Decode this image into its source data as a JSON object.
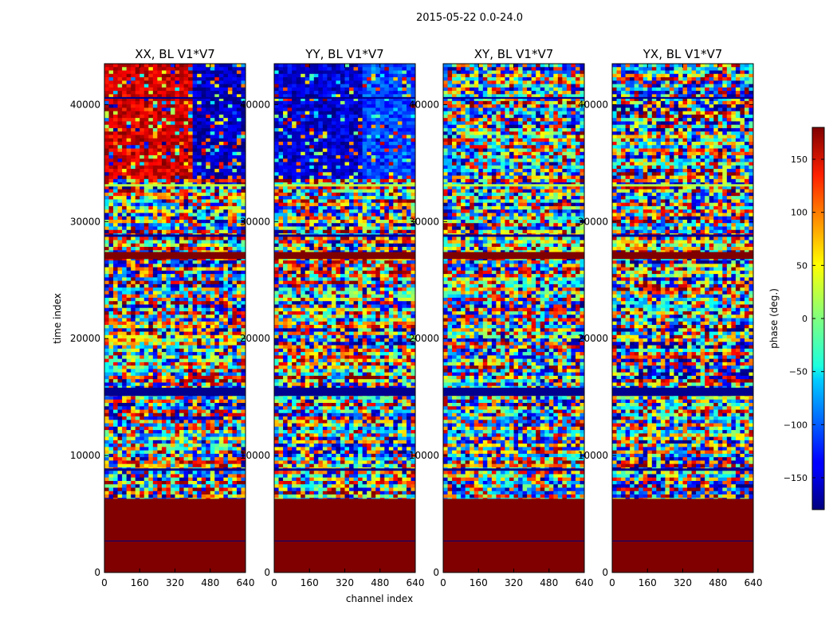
{
  "figure": {
    "suptitle": "2015-05-22 0.0-24.0",
    "xlabel": "channel index",
    "ylabel": "time index",
    "colorbar_label": "phase (deg.)"
  },
  "chart_data": {
    "type": "heatmap",
    "x_range": [
      0,
      640
    ],
    "y_range": [
      0,
      43500
    ],
    "x_ticks": [
      0,
      160,
      320,
      480,
      640
    ],
    "y_ticks": [
      0,
      10000,
      20000,
      30000,
      40000
    ],
    "color_range": [
      -180,
      180
    ],
    "colormap": "jet",
    "colorbar_ticks": [
      150,
      100,
      50,
      0,
      -50,
      -100,
      -150
    ],
    "colorbar_tick_labels": [
      "150",
      "100",
      "50",
      "0",
      "−50",
      "−100",
      "−150"
    ],
    "panels": [
      {
        "id": "xx",
        "title": "XX, BL V1*V7",
        "upper_left_phase": 150,
        "upper_right_phase": -160
      },
      {
        "id": "yy",
        "title": "YY, BL V1*V7",
        "upper_left_phase": -150,
        "upper_right_phase": -110
      },
      {
        "id": "xy",
        "title": "XY, BL V1*V7",
        "upper_left_phase": null,
        "upper_right_phase": null
      },
      {
        "id": "yx",
        "title": "YX, BL V1*V7",
        "upper_left_phase": null,
        "upper_right_phase": null
      }
    ],
    "bands": [
      {
        "t0": 0,
        "t1": 6300,
        "phase": 180
      },
      {
        "t0": 8700,
        "t1": 8900,
        "phase": -175
      },
      {
        "t0": 15100,
        "t1": 15800,
        "phase": -175
      },
      {
        "t0": 26800,
        "t1": 27400,
        "phase": 180
      },
      {
        "t0": 28700,
        "t1": 28900,
        "phase": -175
      },
      {
        "t0": 33000,
        "t1": 33200,
        "phase": 20
      },
      {
        "t0": 40500,
        "t1": 40650,
        "phase": -175
      }
    ]
  },
  "colors": {
    "band_dark_red": "#800000",
    "band_dark_blue": "#00007f",
    "axis": "#000000"
  }
}
